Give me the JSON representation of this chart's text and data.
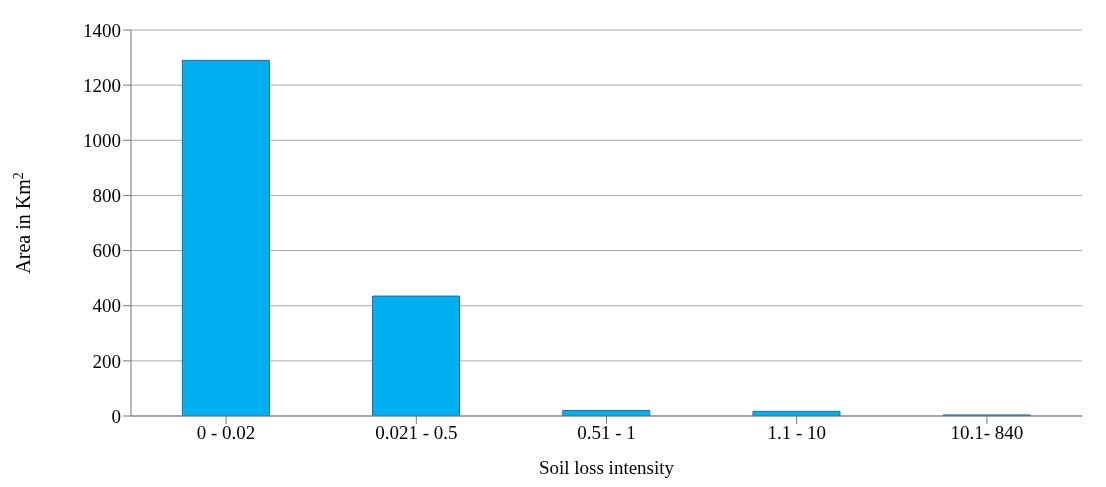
{
  "chart_data": {
    "type": "bar",
    "xlabel": "Soil loss intensity",
    "ylabel": "Area in Km$^{2}$",
    "categories": [
      "0 - 0.02",
      "0.021 - 0.5",
      "0.51 - 1",
      "1.1 - 10",
      "10.1- 840"
    ],
    "values": [
      1290,
      435,
      20,
      17,
      4
    ],
    "color": "#00b0f0",
    "ylim": [
      0,
      1400
    ],
    "yticks": [
      0,
      200,
      400,
      600,
      800,
      1000,
      1200,
      1400
    ],
    "grid": "y"
  }
}
